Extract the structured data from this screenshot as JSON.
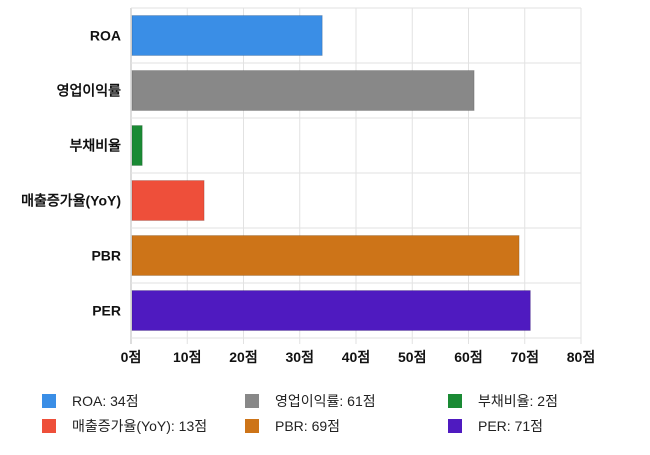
{
  "chart_data": {
    "type": "bar",
    "orientation": "horizontal",
    "categories": [
      "ROA",
      "영업이익률",
      "부채비율",
      "매출증가율(YoY)",
      "PBR",
      "PER"
    ],
    "values": [
      34,
      61,
      2,
      13,
      69,
      71
    ],
    "colors": [
      "#3a8ee6",
      "#888888",
      "#1a8a34",
      "#ee4f3a",
      "#cd7418",
      "#4f1ac0"
    ],
    "xlim": [
      0,
      80
    ],
    "xticks": [
      0,
      10,
      20,
      30,
      40,
      50,
      60,
      70,
      80
    ],
    "tick_labels": [
      "0점",
      "10점",
      "20점",
      "30점",
      "40점",
      "50점",
      "60점",
      "70점",
      "80점"
    ],
    "legend": [
      "ROA: 34점",
      "영업이익률: 61점",
      "부채비율: 2점",
      "매출증가율(YoY): 13점",
      "PBR: 69점",
      "PER: 71점"
    ],
    "legend_placement": "bottom",
    "grid": true,
    "title": "",
    "xlabel": "",
    "ylabel": ""
  }
}
